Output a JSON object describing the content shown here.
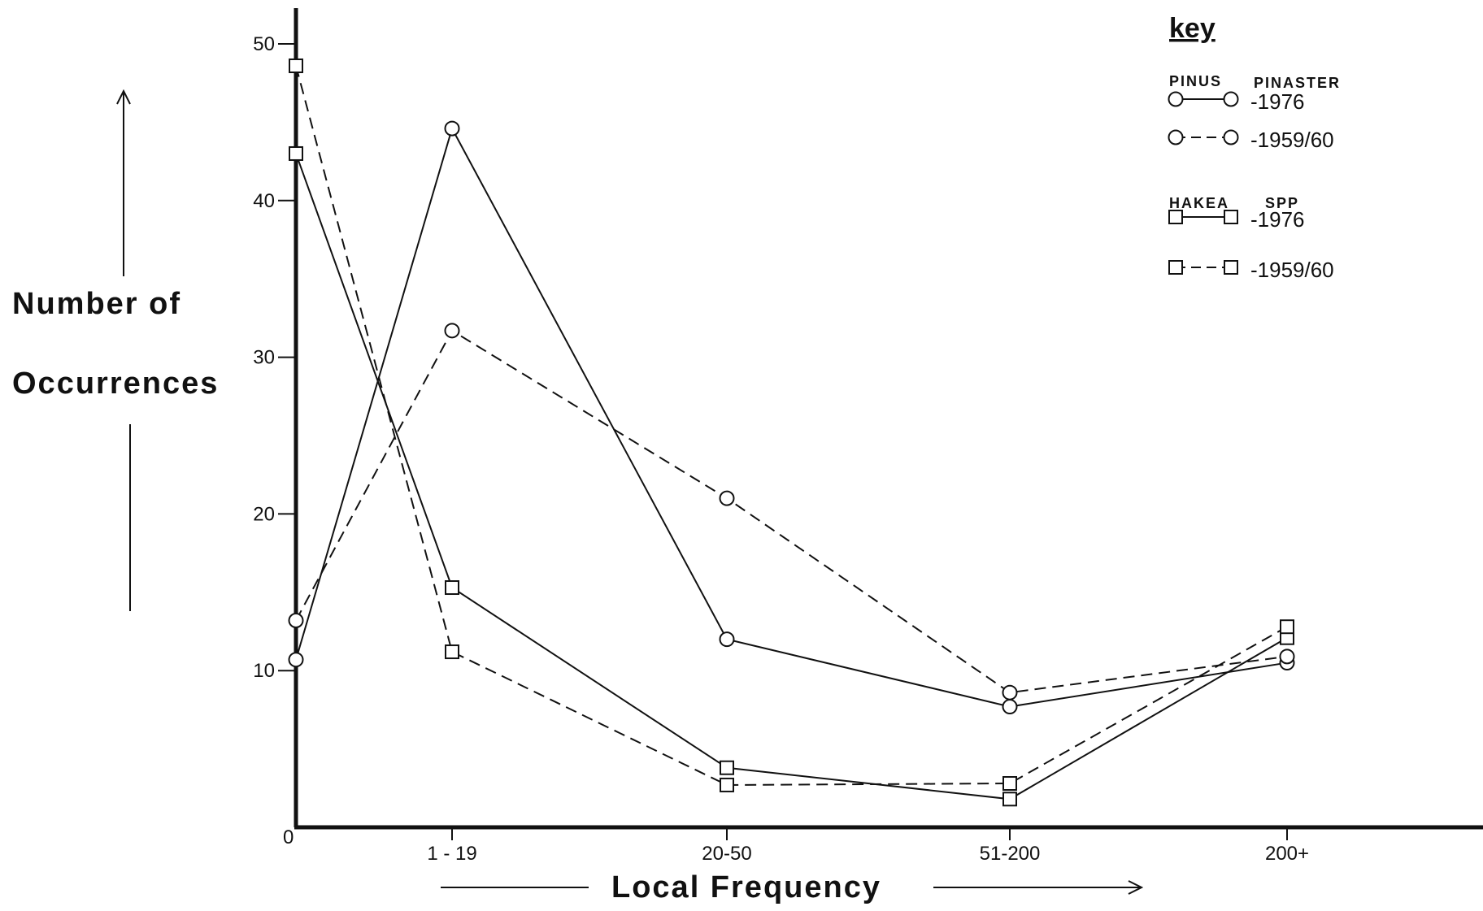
{
  "chart_data": {
    "type": "line",
    "title": "",
    "xlabel": "Local Frequency",
    "ylabel": "Number of Occurrences",
    "ylabel_lines": [
      "Number of",
      "Occurrences"
    ],
    "categories": [
      "0",
      "1 - 19",
      "20-50",
      "51-200",
      "200+"
    ],
    "y_ticks": [
      "50",
      "40",
      "30",
      "20",
      "10"
    ],
    "y_zero_label": "0",
    "ylim": [
      0,
      50
    ],
    "grid": false,
    "legend_position": "top-right",
    "legend": {
      "title": "key",
      "groups": [
        {
          "name": "PINUS",
          "name2": "PINASTER"
        },
        {
          "name": "HAKEA",
          "name2": "SPP"
        }
      ]
    },
    "series": [
      {
        "group": "PINUS PINASTER",
        "label": "-1976",
        "marker": "circle",
        "dash": "solid",
        "values": [
          10.7,
          44.6,
          12.0,
          7.7,
          10.5
        ]
      },
      {
        "group": "PINUS PINASTER",
        "label": "-1959/60",
        "marker": "circle",
        "dash": "dashed",
        "values": [
          13.2,
          31.7,
          21.0,
          8.6,
          10.9
        ]
      },
      {
        "group": "HAKEA SPP",
        "label": "-1976",
        "marker": "square",
        "dash": "solid",
        "values": [
          43.0,
          15.3,
          3.8,
          1.8,
          12.1
        ]
      },
      {
        "group": "HAKEA SPP",
        "label": "-1959/60",
        "marker": "square",
        "dash": "dashed",
        "values": [
          48.6,
          11.2,
          2.7,
          2.8,
          12.8
        ]
      }
    ],
    "colors": {
      "ink": "#111111",
      "background": "#ffffff"
    }
  }
}
